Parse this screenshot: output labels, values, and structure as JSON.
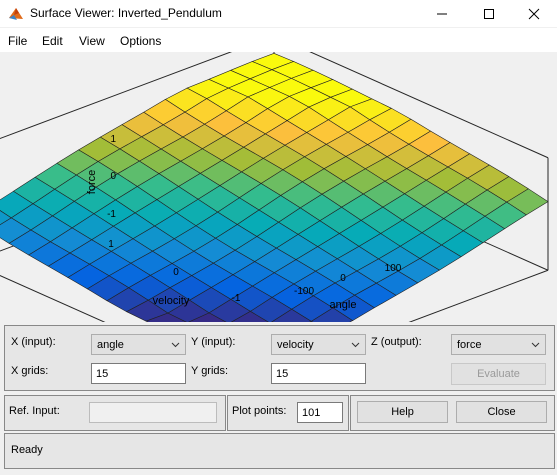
{
  "window": {
    "title": "Surface Viewer: Inverted_Pendulum",
    "icon": "matlab-icon",
    "controls": [
      "minimize-icon",
      "maximize-icon",
      "close-icon"
    ]
  },
  "menu": [
    "File",
    "Edit",
    "View",
    "Options"
  ],
  "plot": {
    "zlabel": "force",
    "ylabel": "velocity",
    "xlabel": "angle",
    "z_ticks": [
      "1",
      "0",
      "-1"
    ],
    "y_ticks": [
      "1",
      "0",
      "-1"
    ],
    "x_ticks": [
      "-100",
      "0",
      "100"
    ]
  },
  "chart_data": {
    "type": "surface",
    "xlabel": "angle",
    "ylabel": "velocity",
    "zlabel": "force",
    "xlim": [
      -150,
      150
    ],
    "ylim": [
      -1,
      1
    ],
    "zlim": [
      -1.5,
      1.5
    ],
    "grid": "15x15",
    "colormap": "parula"
  },
  "controls": {
    "x_input_label": "X (input):",
    "x_input_value": "angle",
    "y_input_label": "Y (input):",
    "y_input_value": "velocity",
    "z_output_label": "Z (output):",
    "z_output_value": "force",
    "x_grids_label": "X grids:",
    "x_grids_value": "15",
    "y_grids_label": "Y grids:",
    "y_grids_value": "15",
    "evaluate_label": "Evaluate",
    "ref_input_label": "Ref. Input:",
    "ref_input_value": "",
    "plot_points_label": "Plot points:",
    "plot_points_value": "101",
    "help_label": "Help",
    "close_label": "Close"
  },
  "status": "Ready"
}
